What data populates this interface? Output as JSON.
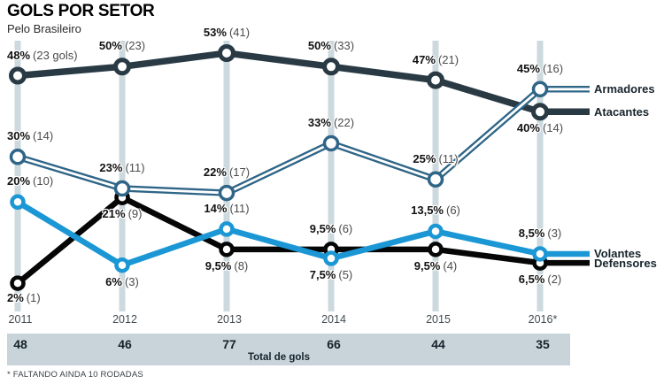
{
  "header": {
    "title": "GOLS POR SETOR",
    "subtitle": "Pelo Brasileiro"
  },
  "footnote": "* FALTANDO AINDA 10 RODADAS",
  "totals": {
    "label": "Total de gols",
    "values": [
      "48",
      "46",
      "77",
      "66",
      "44",
      "35"
    ]
  },
  "colors": {
    "grid_bar": "#ccd9de",
    "totals_band": "#c8d4da",
    "label_pct": "#121212",
    "label_note": "#4b4b4b",
    "year_text": "#434c52",
    "legend_text": "#17242c",
    "background": "#ffffff"
  },
  "chart_data": {
    "type": "line",
    "title": "GOLS POR SETOR",
    "subtitle": "Pelo Brasileiro",
    "categories": [
      "2011",
      "2012",
      "2013",
      "2014",
      "2015",
      "2016*"
    ],
    "unit": "%",
    "ylim": [
      0,
      56
    ],
    "grid": "vertical-bars",
    "legend_position": "right",
    "totals_row": {
      "label": "Total de gols",
      "values": [
        48,
        46,
        77,
        66,
        44,
        35
      ]
    },
    "series": [
      {
        "name": "Atacantes",
        "color": "#293a45",
        "line_style": "solid",
        "values": [
          48,
          50,
          53,
          50,
          47,
          40
        ],
        "labels": [
          {
            "pct": "48%",
            "note": "(23 gols)",
            "pos": "above-left"
          },
          {
            "pct": "50%",
            "note": "(23)",
            "pos": "above"
          },
          {
            "pct": "53%",
            "note": "(41)",
            "pos": "above"
          },
          {
            "pct": "50%",
            "note": "(33)",
            "pos": "above"
          },
          {
            "pct": "47%",
            "note": "(21)",
            "pos": "above"
          },
          {
            "pct": "40%",
            "note": "(14)",
            "pos": "below"
          }
        ]
      },
      {
        "name": "Armadores",
        "color": "#2f6587",
        "line_style": "double",
        "values": [
          30,
          23,
          22,
          33,
          25,
          45
        ],
        "labels": [
          {
            "pct": "30%",
            "note": "(14)",
            "pos": "above-left"
          },
          {
            "pct": "23%",
            "note": "(11)",
            "pos": "above"
          },
          {
            "pct": "22%",
            "note": "(17)",
            "pos": "above"
          },
          {
            "pct": "33%",
            "note": "(22)",
            "pos": "above"
          },
          {
            "pct": "25%",
            "note": "(11)",
            "pos": "above"
          },
          {
            "pct": "45%",
            "note": "(16)",
            "pos": "above"
          }
        ]
      },
      {
        "name": "Volantes",
        "color": "#1b97d5",
        "line_style": "solid",
        "values": [
          20,
          6,
          14,
          7.5,
          13.5,
          8.5
        ],
        "labels": [
          {
            "pct": "20%",
            "note": "(10)",
            "pos": "above-left"
          },
          {
            "pct": "6%",
            "note": "(3)",
            "pos": "below"
          },
          {
            "pct": "14%",
            "note": "(11)",
            "pos": "above"
          },
          {
            "pct": "7,5%",
            "note": "(5)",
            "pos": "below"
          },
          {
            "pct": "13,5%",
            "note": "(6)",
            "pos": "above"
          },
          {
            "pct": "8,5%",
            "note": "(3)",
            "pos": "above"
          }
        ]
      },
      {
        "name": "Defensores",
        "color": "#060606",
        "line_style": "solid",
        "values": [
          2,
          21,
          9.5,
          9.5,
          9.5,
          6.5
        ],
        "labels": [
          {
            "pct": "2%",
            "note": "(1)",
            "pos": "below-left"
          },
          {
            "pct": "21%",
            "note": "(9)",
            "pos": "below"
          },
          {
            "pct": "9,5%",
            "note": "(8)",
            "pos": "below"
          },
          {
            "pct": "9,5%",
            "note": "(6)",
            "pos": "above"
          },
          {
            "pct": "9,5%",
            "note": "(4)",
            "pos": "below"
          },
          {
            "pct": "6,5%",
            "note": "(2)",
            "pos": "below"
          }
        ]
      }
    ]
  }
}
